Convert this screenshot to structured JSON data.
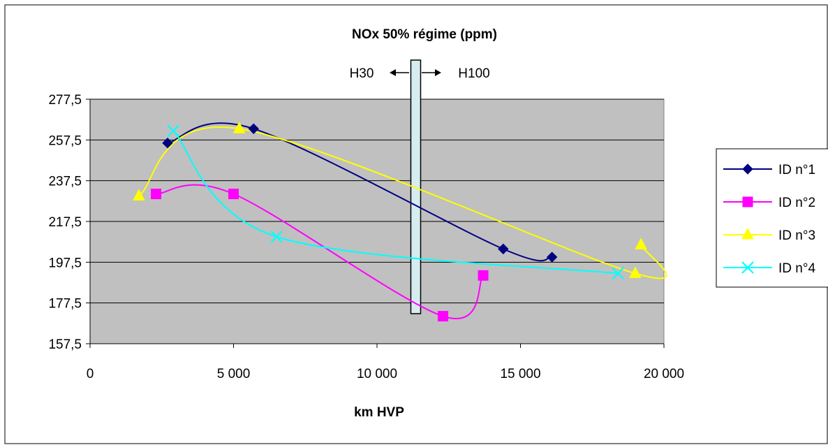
{
  "chart_data": {
    "type": "line",
    "title": "NOx 50% régime (ppm)",
    "xlabel": "km HVP",
    "ylabel": "",
    "xlim": [
      0,
      20000
    ],
    "ylim": [
      157.5,
      277.5
    ],
    "x_ticks": [
      0,
      5000,
      10000,
      15000,
      20000
    ],
    "x_tick_labels": [
      "0",
      "5 000",
      "10 000",
      "15 000",
      "20 000"
    ],
    "y_ticks": [
      157.5,
      177.5,
      197.5,
      217.5,
      237.5,
      257.5,
      277.5
    ],
    "y_tick_labels": [
      "157,5",
      "177,5",
      "197,5",
      "217,5",
      "237,5",
      "257,5",
      "277,5"
    ],
    "grid": "horizontal",
    "plot_background": "#c0c0c0",
    "legend_position": "right",
    "annotations": {
      "left_label": "H30",
      "right_label": "H100",
      "divider_x": 11350
    },
    "series": [
      {
        "name": "ID n°1",
        "color": "#000080",
        "marker": "diamond",
        "x": [
          2700,
          5700,
          14400,
          16100
        ],
        "y": [
          256,
          263,
          204,
          200
        ]
      },
      {
        "name": "ID n°2",
        "color": "#ff00ff",
        "marker": "square",
        "x": [
          2300,
          5000,
          12300,
          13700
        ],
        "y": [
          231,
          231,
          171,
          191
        ]
      },
      {
        "name": "ID n°3",
        "color": "#ffff00",
        "marker": "triangle",
        "x": [
          1700,
          5200,
          19000,
          19200
        ],
        "y": [
          230,
          263,
          192,
          206
        ]
      },
      {
        "name": "ID n°4",
        "color": "#00ffff",
        "marker": "x",
        "x": [
          2900,
          6500,
          18400
        ],
        "y": [
          262,
          210,
          192
        ]
      }
    ]
  }
}
